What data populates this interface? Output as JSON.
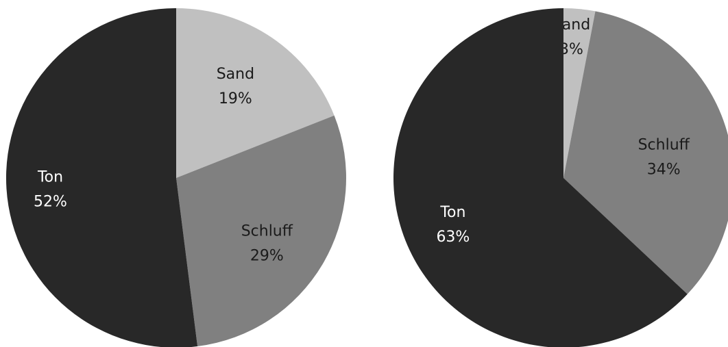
{
  "chart_data": [
    {
      "type": "pie",
      "title": "",
      "categories": [
        "Sand",
        "Schluff",
        "Ton"
      ],
      "values": [
        19,
        29,
        52
      ],
      "labels": [
        "19%",
        "29%",
        "52%"
      ],
      "colors": [
        "#c0c0c0",
        "#808080",
        "#282828"
      ],
      "label_colors": [
        "#1a1a1a",
        "#1a1a1a",
        "#ffffff"
      ],
      "start_angle_deg": 0,
      "direction": "clockwise",
      "legend": "none"
    },
    {
      "type": "pie",
      "title": "",
      "categories": [
        "Sand",
        "Schluff",
        "Ton"
      ],
      "values": [
        3,
        34,
        63
      ],
      "labels": [
        "3%",
        "34%",
        "63%"
      ],
      "colors": [
        "#c0c0c0",
        "#808080",
        "#282828"
      ],
      "label_colors": [
        "#1a1a1a",
        "#1a1a1a",
        "#ffffff"
      ],
      "start_angle_deg": 0,
      "direction": "clockwise",
      "legend": "none"
    }
  ]
}
